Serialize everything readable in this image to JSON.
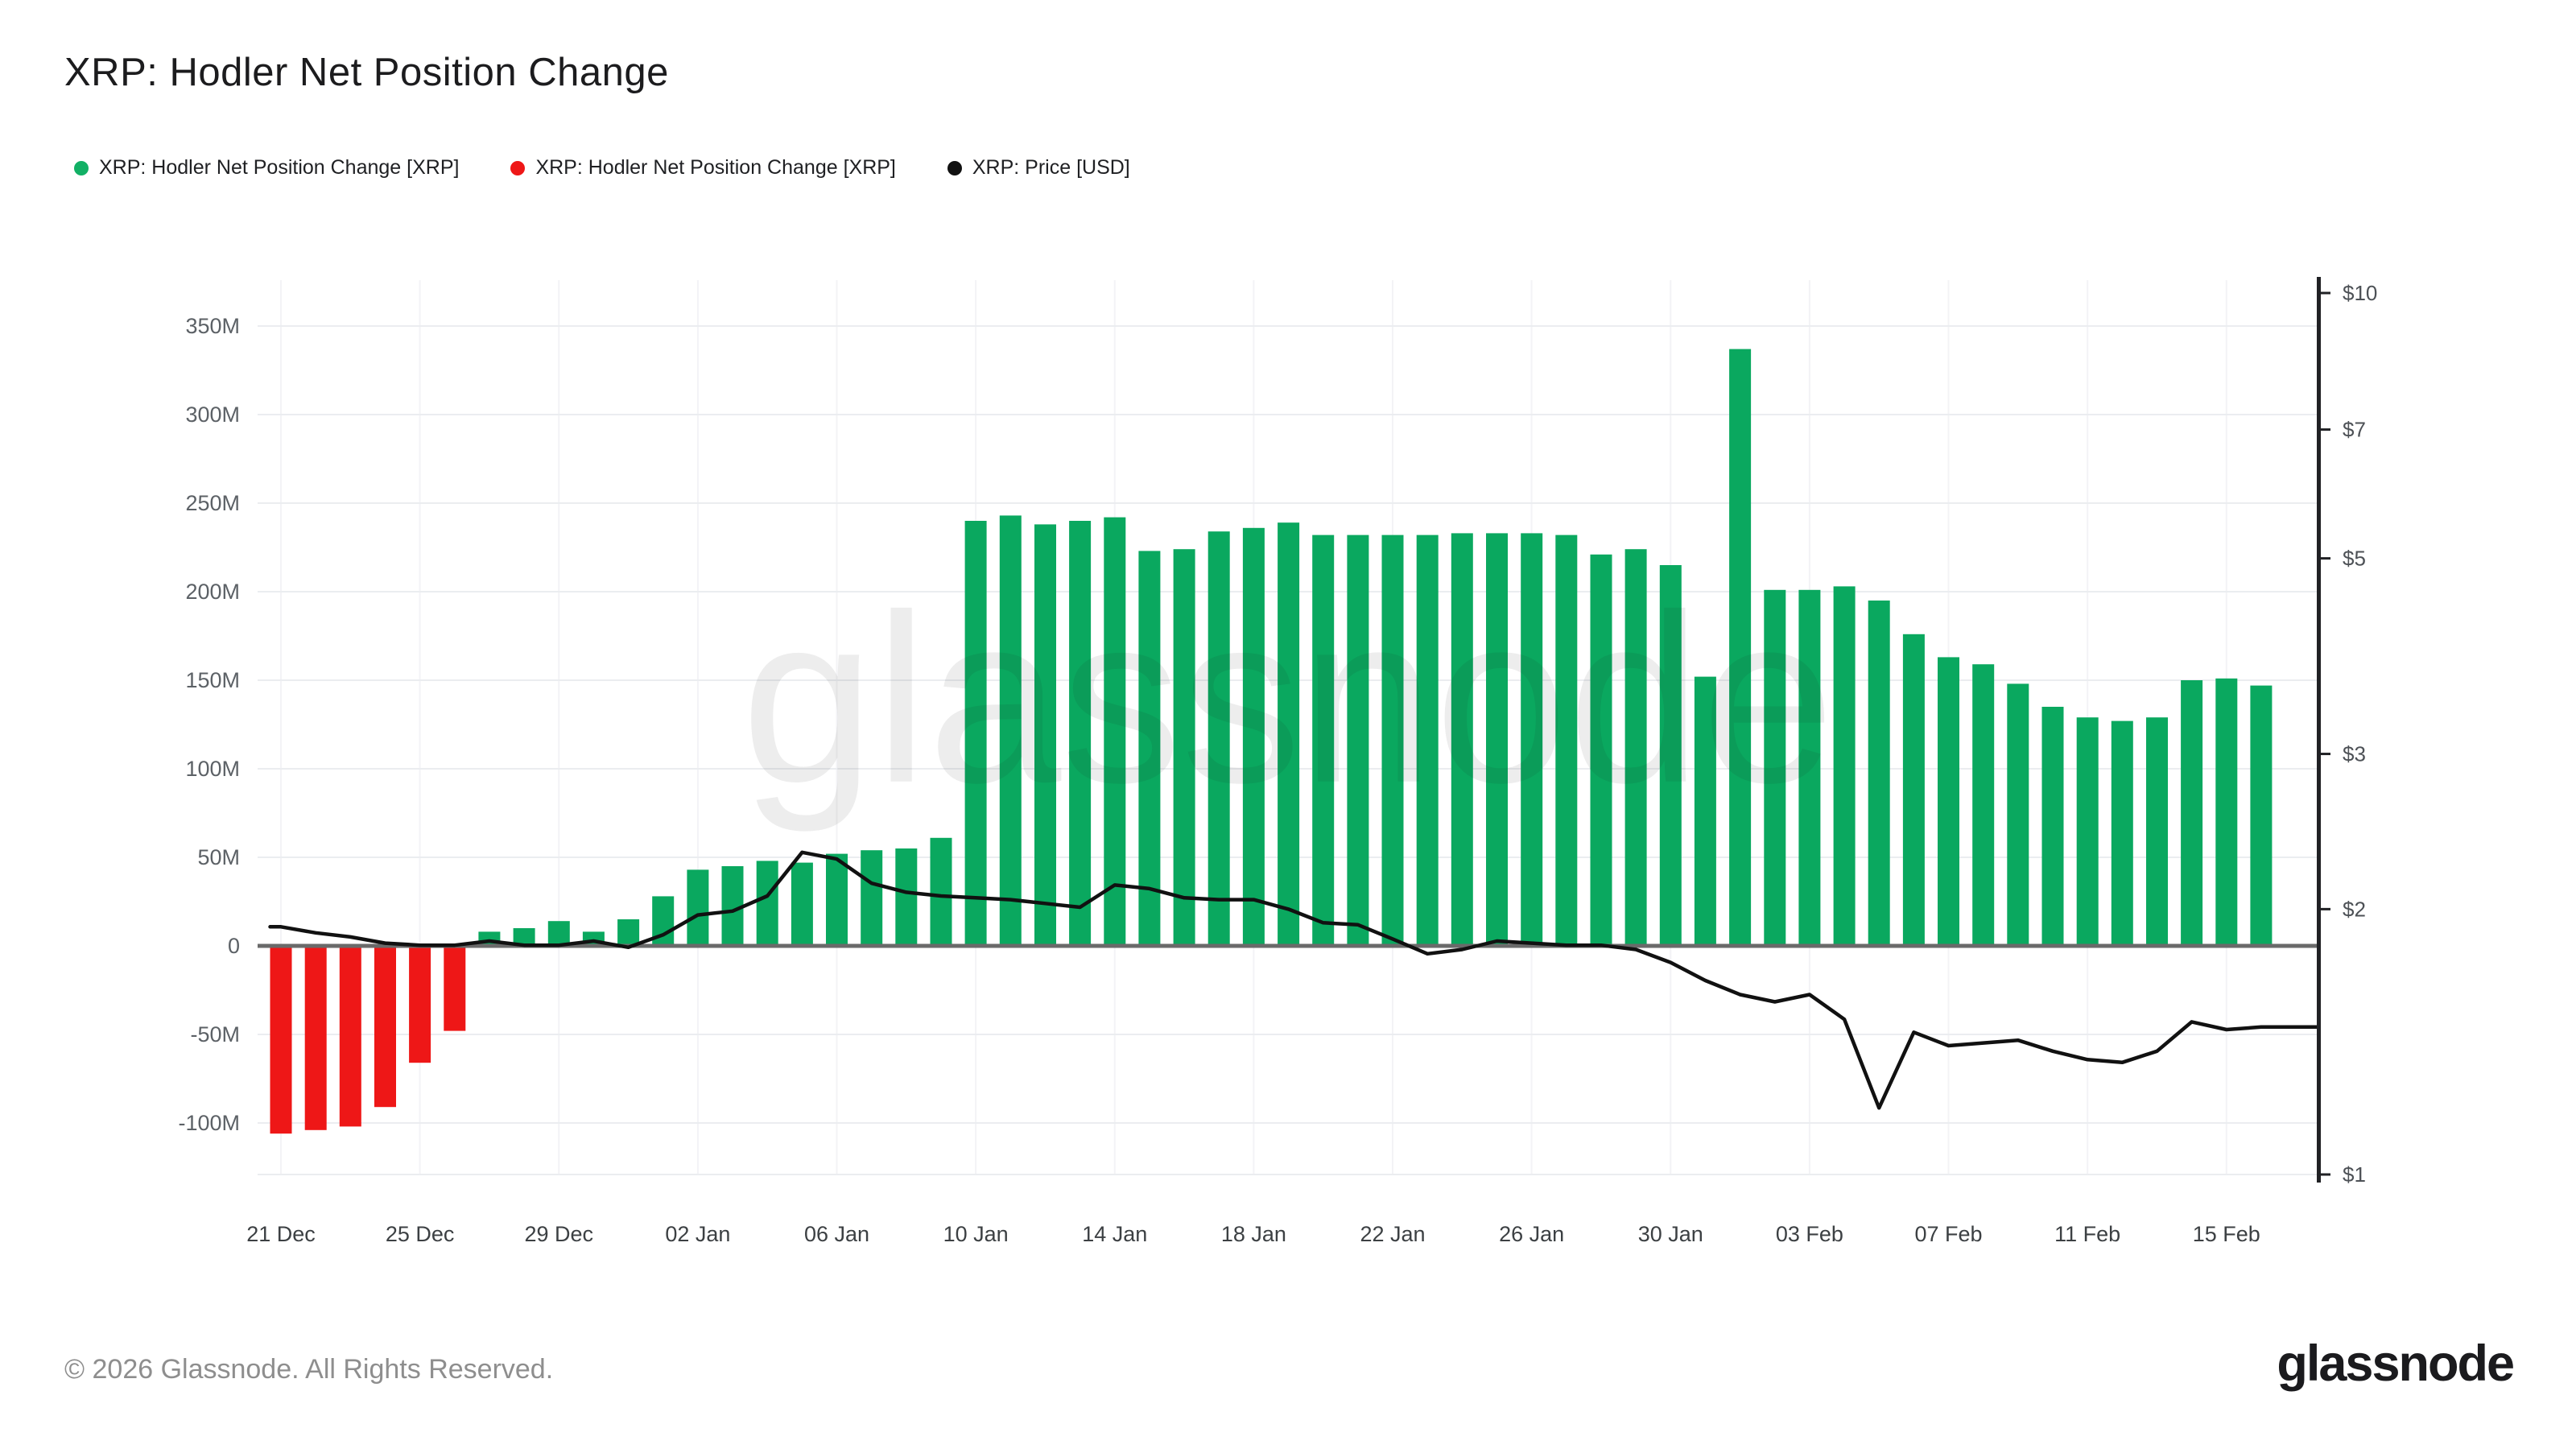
{
  "page": {
    "title": "XRP: Hodler Net Position Change",
    "footer": "© 2026 Glassnode. All Rights Reserved.",
    "brand_logo": "glassnode",
    "watermark": "glassnode"
  },
  "legend": {
    "position": "top-left",
    "items": [
      {
        "label": "XRP: Hodler Net Position Change [XRP]",
        "color": "#12b065",
        "shape": "dot"
      },
      {
        "label": "XRP: Hodler Net Position Change [XRP]",
        "color": "#ee1717",
        "shape": "dot"
      },
      {
        "label": "XRP: Price [USD]",
        "color": "#111111",
        "shape": "dot"
      }
    ]
  },
  "chart_data": {
    "type": "bar",
    "title": "XRP: Hodler Net Position Change",
    "grid": true,
    "x_dates": [
      "21 Dec",
      "22 Dec",
      "23 Dec",
      "24 Dec",
      "25 Dec",
      "26 Dec",
      "27 Dec",
      "28 Dec",
      "29 Dec",
      "30 Dec",
      "31 Dec",
      "01 Jan",
      "02 Jan",
      "03 Jan",
      "04 Jan",
      "05 Jan",
      "06 Jan",
      "07 Jan",
      "08 Jan",
      "09 Jan",
      "10 Jan",
      "11 Jan",
      "12 Jan",
      "13 Jan",
      "14 Jan",
      "15 Jan",
      "16 Jan",
      "17 Jan",
      "18 Jan",
      "19 Jan",
      "20 Jan",
      "21 Jan",
      "22 Jan",
      "23 Jan",
      "24 Jan",
      "25 Jan",
      "26 Jan",
      "27 Jan",
      "28 Jan",
      "29 Jan",
      "30 Jan",
      "31 Jan",
      "01 Feb",
      "02 Feb",
      "03 Feb",
      "04 Feb",
      "05 Feb",
      "06 Feb",
      "07 Feb",
      "08 Feb",
      "09 Feb",
      "10 Feb",
      "11 Feb",
      "12 Feb",
      "13 Feb",
      "14 Feb",
      "15 Feb",
      "16 Feb"
    ],
    "x_tick_labels": [
      "21 Dec",
      "25 Dec",
      "29 Dec",
      "02 Jan",
      "06 Jan",
      "10 Jan",
      "14 Jan",
      "18 Jan",
      "22 Jan",
      "26 Jan",
      "30 Jan",
      "03 Feb",
      "07 Feb",
      "11 Feb",
      "15 Feb"
    ],
    "x_tick_day_indices": [
      0,
      4,
      8,
      12,
      16,
      20,
      24,
      28,
      32,
      36,
      40,
      44,
      48,
      52,
      56
    ],
    "series": [
      {
        "name": "XRP: Hodler Net Position Change [XRP]",
        "type": "bar",
        "axis": "left",
        "unit": "XRP, millions",
        "color_positive": "#0aa85f",
        "color_negative": "#ee1717",
        "values_millions": [
          -106,
          -104,
          -102,
          -91,
          -66,
          -48,
          8,
          10,
          14,
          8,
          15,
          28,
          43,
          45,
          48,
          47,
          52,
          54,
          55,
          61,
          240,
          243,
          238,
          240,
          242,
          223,
          224,
          234,
          236,
          239,
          232,
          232,
          232,
          232,
          233,
          233,
          233,
          232,
          221,
          224,
          215,
          152,
          337,
          201,
          201,
          203,
          195,
          176,
          163,
          159,
          148,
          135,
          129,
          127,
          129,
          150,
          151,
          147
        ]
      },
      {
        "name": "XRP: Price [USD]",
        "type": "line",
        "axis": "right",
        "unit": "USD",
        "color": "#111111",
        "values_usd": [
          1.91,
          1.88,
          1.86,
          1.83,
          1.82,
          1.82,
          1.84,
          1.82,
          1.82,
          1.84,
          1.81,
          1.87,
          1.97,
          1.99,
          2.07,
          2.32,
          2.28,
          2.14,
          2.09,
          2.07,
          2.06,
          2.05,
          2.03,
          2.01,
          2.13,
          2.11,
          2.06,
          2.05,
          2.05,
          2.0,
          1.93,
          1.92,
          1.85,
          1.78,
          1.8,
          1.84,
          1.83,
          1.82,
          1.82,
          1.8,
          1.74,
          1.66,
          1.6,
          1.57,
          1.6,
          1.5,
          1.19,
          1.45,
          1.4,
          1.41,
          1.42,
          1.38,
          1.35,
          1.34,
          1.38,
          1.49,
          1.46,
          1.47
        ]
      }
    ],
    "left_axis": {
      "scale": "linear",
      "tick_labels": [
        "350M",
        "300M",
        "250M",
        "200M",
        "150M",
        "100M",
        "50M",
        "0",
        "-50M",
        "-100M"
      ],
      "tick_values_millions": [
        350,
        300,
        250,
        200,
        150,
        100,
        50,
        0,
        -50,
        -100
      ],
      "range_millions": [
        -129,
        377
      ]
    },
    "right_axis": {
      "scale": "log",
      "tick_labels": [
        "$10",
        "$7",
        "$5",
        "$3",
        "$2",
        "$1"
      ],
      "tick_values_usd": [
        10,
        7,
        5,
        3,
        2,
        1
      ],
      "range_usd": [
        1,
        10
      ]
    }
  }
}
